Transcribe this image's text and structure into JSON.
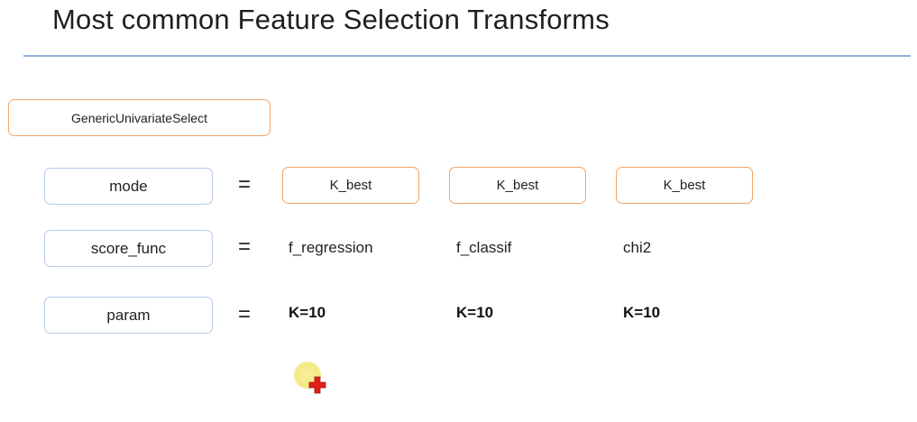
{
  "slide": {
    "title": "Most common Feature Selection Transforms"
  },
  "main_box": {
    "label": "GenericUnivariateSelect"
  },
  "rows": {
    "mode": {
      "label": "mode",
      "equals": "=",
      "values": [
        "K_best",
        "K_best",
        "K_best"
      ]
    },
    "score_func": {
      "label": "score_func",
      "equals": "=",
      "values": [
        "f_regression",
        "f_classif",
        "chi2"
      ]
    },
    "param": {
      "label": "param",
      "equals": "=",
      "values": [
        "K=10",
        "K=10",
        "K=10"
      ]
    }
  },
  "cursor": {
    "icon": "pointer-highlight-icon",
    "halo_color": "#f3e985",
    "plus_color": "#e0201b"
  },
  "colors": {
    "title_rule": "#8fb0d8",
    "orange_border": "#f0a468",
    "blue_border": "#b7c9e6"
  }
}
